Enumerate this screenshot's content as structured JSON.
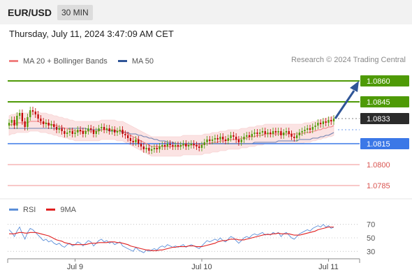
{
  "header": {
    "pair": "EUR/USD",
    "timeframe": "30 MIN"
  },
  "datetime": "Thursday, July 11, 2024 3:47:09 AM CET",
  "legend_main": [
    {
      "label": "MA 20 + Bollinger Bands",
      "color": "#f08080"
    },
    {
      "label": "MA 50",
      "color": "#2f5597"
    }
  ],
  "credit": "Research © 2024 Trading Central",
  "legend_rsi": [
    {
      "label": "RSI",
      "color": "#5b8fd9"
    },
    {
      "label": "9MA",
      "color": "#e02020"
    }
  ],
  "colors": {
    "resistance": "#4e9a06",
    "pivot": "#3b78e7",
    "support": "#f4a6a6",
    "bull": "#4e9a06",
    "bear": "#c00000",
    "current_box": "#2b2b2b",
    "arrow": "#2f5597",
    "band_fill": "#fbe3e3",
    "ma20": "#f08080",
    "ma50": "#6b7fb0",
    "rsi": "#5b8fd9",
    "rsi_ma": "#e02020"
  },
  "chart_data": [
    {
      "type": "candlestick",
      "title": "EUR/USD 30 MIN",
      "ylim": [
        1.0778,
        1.0868
      ],
      "x_ticks": [
        {
          "label": "Jul 9",
          "index": 25
        },
        {
          "label": "Jul 10",
          "index": 73
        },
        {
          "label": "Jul 11",
          "index": 121
        }
      ],
      "levels": [
        {
          "value": 1.086,
          "label": "1.0860",
          "kind": "resistance",
          "boxed": true
        },
        {
          "value": 1.0845,
          "label": "1.0845",
          "kind": "resistance",
          "boxed": true
        },
        {
          "value": 1.0833,
          "label": "1.0833",
          "kind": "current",
          "boxed": true
        },
        {
          "value": 1.0815,
          "label": "1.0815",
          "kind": "pivot",
          "boxed": true
        },
        {
          "value": 1.08,
          "label": "1.0800",
          "kind": "support",
          "boxed": false
        },
        {
          "value": 1.0785,
          "label": "1.0785",
          "kind": "support",
          "boxed": false
        }
      ],
      "projection": {
        "from": 1.0833,
        "to": 1.086
      },
      "close": [
        1.083,
        1.0832,
        1.0828,
        1.0835,
        1.0837,
        1.0831,
        1.0827,
        1.0834,
        1.0839,
        1.0838,
        1.0836,
        1.0833,
        1.0831,
        1.0829,
        1.083,
        1.0828,
        1.0829,
        1.0827,
        1.0825,
        1.0826,
        1.0824,
        1.0822,
        1.0823,
        1.0824,
        1.0822,
        1.0823,
        1.0825,
        1.0824,
        1.0822,
        1.0824,
        1.0826,
        1.0825,
        1.0822,
        1.0824,
        1.0826,
        1.0827,
        1.0825,
        1.0826,
        1.0824,
        1.0825,
        1.0823,
        1.0824,
        1.0825,
        1.0822,
        1.0821,
        1.0819,
        1.0817,
        1.0816,
        1.0818,
        1.0815,
        1.0813,
        1.0811,
        1.0812,
        1.081,
        1.0811,
        1.0812,
        1.0811,
        1.0813,
        1.0814,
        1.0813,
        1.0815,
        1.0814,
        1.0813,
        1.0814,
        1.0813,
        1.0814,
        1.0815,
        1.0813,
        1.0814,
        1.0815,
        1.0814,
        1.0813,
        1.0812,
        1.0814,
        1.0816,
        1.0818,
        1.0817,
        1.0818,
        1.0819,
        1.0818,
        1.082,
        1.0818,
        1.0817,
        1.0819,
        1.0821,
        1.082,
        1.0818,
        1.0816,
        1.0818,
        1.082,
        1.0821,
        1.082,
        1.0822,
        1.0823,
        1.0822,
        1.0823,
        1.0824,
        1.0822,
        1.0823,
        1.0822,
        1.0824,
        1.0823,
        1.0824,
        1.0821,
        1.0823,
        1.0824,
        1.0822,
        1.082,
        1.0819,
        1.0821,
        1.0823,
        1.0824,
        1.0825,
        1.0826,
        1.0825,
        1.0827,
        1.0828,
        1.083,
        1.0829,
        1.0831,
        1.083,
        1.0832,
        1.0831,
        1.0833
      ],
      "ma20": [
        1.0828,
        1.0829,
        1.0829,
        1.083,
        1.083,
        1.083,
        1.083,
        1.083,
        1.0831,
        1.0831,
        1.0831,
        1.0831,
        1.083,
        1.083,
        1.083,
        1.0829,
        1.0829,
        1.0828,
        1.0828,
        1.0827,
        1.0827,
        1.0826,
        1.0826,
        1.0825,
        1.0825,
        1.0824,
        1.0824,
        1.0824,
        1.0824,
        1.0824,
        1.0824,
        1.0824,
        1.0824,
        1.0824,
        1.0824,
        1.0825,
        1.0825,
        1.0825,
        1.0825,
        1.0825,
        1.0825,
        1.0824,
        1.0824,
        1.0824,
        1.0823,
        1.0822,
        1.0821,
        1.082,
        1.0819,
        1.0818,
        1.0817,
        1.0816,
        1.0815,
        1.0814,
        1.0813,
        1.0813,
        1.0813,
        1.0813,
        1.0813,
        1.0813,
        1.0813,
        1.0813,
        1.0813,
        1.0813,
        1.0813,
        1.0813,
        1.0814,
        1.0814,
        1.0814,
        1.0814,
        1.0814,
        1.0814,
        1.0814,
        1.0814,
        1.0815,
        1.0815,
        1.0815,
        1.0816,
        1.0816,
        1.0816,
        1.0817,
        1.0817,
        1.0817,
        1.0818,
        1.0818,
        1.0818,
        1.0818,
        1.0818,
        1.0819,
        1.0819,
        1.0819,
        1.082,
        1.082,
        1.082,
        1.0821,
        1.0821,
        1.0821,
        1.0822,
        1.0822,
        1.0822,
        1.0822,
        1.0822,
        1.0822,
        1.0822,
        1.0822,
        1.0822,
        1.0822,
        1.0822,
        1.0822,
        1.0822,
        1.0822,
        1.0822,
        1.0823,
        1.0823,
        1.0823,
        1.0824,
        1.0824,
        1.0825,
        1.0825,
        1.0826,
        1.0826,
        1.0827,
        1.0827,
        1.0828
      ],
      "ma50": [
        1.0826,
        1.0826,
        1.0826,
        1.0826,
        1.0826,
        1.0826,
        1.0826,
        1.0826,
        1.0826,
        1.0826,
        1.0826,
        1.0826,
        1.0826,
        1.0826,
        1.0826,
        1.0826,
        1.0826,
        1.0826,
        1.0826,
        1.0826,
        1.0826,
        1.0826,
        1.0826,
        1.0826,
        1.0826,
        1.0826,
        1.0826,
        1.0826,
        1.0826,
        1.0826,
        1.0825,
        1.0825,
        1.0825,
        1.0825,
        1.0825,
        1.0825,
        1.0825,
        1.0825,
        1.0824,
        1.0824,
        1.0824,
        1.0824,
        1.0824,
        1.0823,
        1.0823,
        1.0823,
        1.0822,
        1.0822,
        1.0822,
        1.0821,
        1.0821,
        1.082,
        1.082,
        1.0819,
        1.0819,
        1.0818,
        1.0818,
        1.0817,
        1.0817,
        1.0817,
        1.0816,
        1.0816,
        1.0816,
        1.0815,
        1.0815,
        1.0815,
        1.0815,
        1.0815,
        1.0815,
        1.0815,
        1.0815,
        1.0815,
        1.0815,
        1.0815,
        1.0815,
        1.0815,
        1.0815,
        1.0815,
        1.0815,
        1.0815,
        1.0815,
        1.0815,
        1.0815,
        1.0815,
        1.0815,
        1.0815,
        1.0815,
        1.0815,
        1.0815,
        1.0815,
        1.0815,
        1.0815,
        1.0815,
        1.0816,
        1.0816,
        1.0816,
        1.0816,
        1.0816,
        1.0816,
        1.0816,
        1.0816,
        1.0816,
        1.0817,
        1.0817,
        1.0817,
        1.0817,
        1.0817,
        1.0817,
        1.0817,
        1.0817,
        1.0818,
        1.0818,
        1.0818,
        1.0818,
        1.0818,
        1.0819,
        1.0819,
        1.0819,
        1.082,
        1.082,
        1.0821,
        1.0821,
        1.0822,
        1.0823
      ],
      "band_width": 0.0007
    },
    {
      "type": "line",
      "title": "RSI",
      "ylim": [
        20,
        80
      ],
      "y_ticks": [
        70,
        50,
        30
      ],
      "rsi": [
        62,
        58,
        52,
        60,
        66,
        56,
        48,
        58,
        64,
        62,
        58,
        54,
        50,
        46,
        48,
        44,
        46,
        42,
        40,
        42,
        38,
        36,
        40,
        42,
        38,
        40,
        44,
        42,
        38,
        42,
        46,
        44,
        38,
        42,
        46,
        48,
        44,
        46,
        42,
        44,
        40,
        42,
        44,
        38,
        36,
        34,
        32,
        30,
        36,
        32,
        30,
        28,
        32,
        30,
        32,
        34,
        32,
        36,
        38,
        36,
        40,
        38,
        36,
        38,
        36,
        38,
        40,
        36,
        38,
        40,
        38,
        36,
        34,
        38,
        42,
        46,
        44,
        46,
        48,
        46,
        50,
        46,
        44,
        48,
        52,
        50,
        46,
        42,
        46,
        50,
        52,
        50,
        54,
        56,
        54,
        56,
        58,
        54,
        56,
        54,
        58,
        56,
        58,
        52,
        56,
        58,
        54,
        50,
        48,
        52,
        56,
        58,
        60,
        62,
        60,
        64,
        66,
        68,
        66,
        70,
        66,
        68,
        64,
        66
      ],
      "rsi_ma": [
        56,
        56,
        56,
        57,
        58,
        58,
        57,
        57,
        58,
        58,
        58,
        57,
        56,
        55,
        54,
        53,
        51,
        49,
        47,
        46,
        45,
        43,
        42,
        41,
        40,
        40,
        40,
        40,
        40,
        40,
        41,
        42,
        42,
        42,
        43,
        43,
        43,
        43,
        44,
        44,
        44,
        43,
        43,
        42,
        41,
        40,
        38,
        37,
        36,
        35,
        34,
        33,
        32,
        32,
        31,
        31,
        31,
        32,
        32,
        33,
        34,
        35,
        36,
        36,
        37,
        37,
        37,
        37,
        38,
        38,
        38,
        37,
        37,
        37,
        38,
        39,
        40,
        41,
        42,
        44,
        45,
        46,
        46,
        47,
        48,
        48,
        48,
        47,
        47,
        47,
        48,
        49,
        50,
        51,
        52,
        53,
        54,
        55,
        55,
        55,
        56,
        56,
        57,
        56,
        56,
        56,
        56,
        55,
        54,
        54,
        54,
        55,
        56,
        57,
        58,
        59,
        60,
        62,
        63,
        64,
        65,
        66,
        66,
        66
      ]
    }
  ]
}
